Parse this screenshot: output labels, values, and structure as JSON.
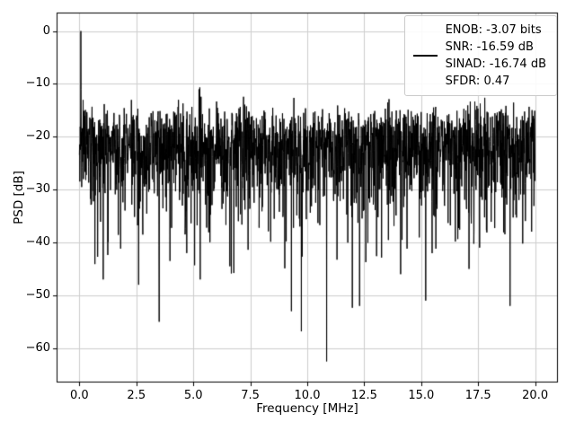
{
  "figure": {
    "xlabel": "Frequency [MHz]",
    "ylabel": "PSD [dB]",
    "x_ticks": [
      0,
      2.5,
      5,
      7.5,
      10,
      12.5,
      15,
      17.5,
      20
    ],
    "x_tick_labels": [
      "0.0",
      "2.5",
      "5.0",
      "7.5",
      "10.0",
      "12.5",
      "15.0",
      "17.5",
      "20.0"
    ],
    "y_ticks": [
      0,
      -10,
      -20,
      -30,
      -40,
      -50,
      -60
    ],
    "y_tick_labels": [
      "0",
      "−10",
      "−20",
      "−30",
      "−40",
      "−50",
      "−60"
    ],
    "background_color": "#ffffff"
  },
  "legend": {
    "lines": [
      "ENOB: -3.07 bits",
      "SNR: -16.59 dB",
      "SINAD: -16.74 dB",
      "SFDR: 0.47"
    ]
  },
  "chart_data": {
    "type": "line",
    "title": "",
    "xlabel": "Frequency [MHz]",
    "ylabel": "PSD [dB]",
    "xlim": [
      -1,
      21
    ],
    "ylim": [
      -66.5,
      3.5
    ],
    "grid": true,
    "legend_position": "upper right",
    "metrics": {
      "ENOB": "-3.07 bits",
      "SNR": "-16.59 dB",
      "SINAD": "-16.74 dB",
      "SFDR": "0.47"
    },
    "series": [
      {
        "name": "PSD",
        "color": "#000000",
        "generator": {
          "kind": "noise_psd_db",
          "points": 2200,
          "x_start": 0,
          "x_end": 20,
          "base_level_db": -20.5,
          "seed": 42,
          "clip_min_db": -62.5,
          "peak": {
            "x": 0.06,
            "y_db": 0
          },
          "nulls": [
            {
              "x": 1.05,
              "y_db": -47
            },
            {
              "x": 2.6,
              "y_db": -48
            },
            {
              "x": 3.5,
              "y_db": -55
            },
            {
              "x": 5.3,
              "y_db": -47
            },
            {
              "x": 6.6,
              "y_db": -44.5
            },
            {
              "x": 9.3,
              "y_db": -53
            },
            {
              "x": 10.85,
              "y_db": -62.5
            },
            {
              "x": 12.3,
              "y_db": -52
            },
            {
              "x": 14.1,
              "y_db": -46
            },
            {
              "x": 15.2,
              "y_db": -51
            },
            {
              "x": 17.1,
              "y_db": -45
            },
            {
              "x": 18.9,
              "y_db": -52
            }
          ]
        }
      }
    ]
  }
}
